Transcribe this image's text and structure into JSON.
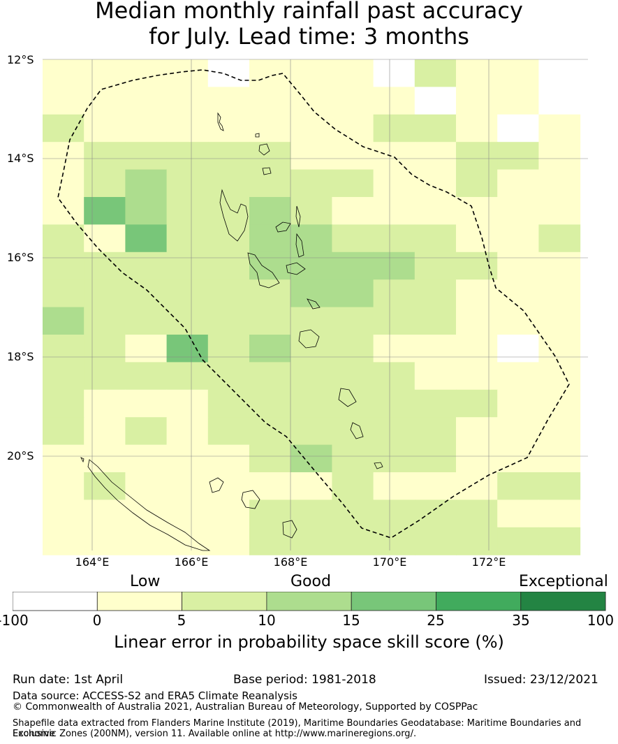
{
  "title": {
    "line1": "Median monthly rainfall past accuracy",
    "line2": "for July. Lead time: 3 months"
  },
  "axes": {
    "lat_labels": [
      "12°S",
      "14°S",
      "16°S",
      "18°S",
      "20°S"
    ],
    "lon_labels": [
      "164°E",
      "166°E",
      "168°E",
      "170°E",
      "172°E"
    ]
  },
  "legend": {
    "categories": [
      "Low",
      "Good",
      "Exceptional"
    ],
    "ticks": [
      "-100",
      "0",
      "5",
      "10",
      "15",
      "25",
      "35",
      "100"
    ],
    "colors": [
      "#ffffff",
      "#ffffcc",
      "#d9f0a3",
      "#addd8e",
      "#78c679",
      "#41ab5d",
      "#238443"
    ],
    "title": "Linear error in probability space skill score (%)"
  },
  "footer": {
    "run_date": "Run date: 1st April",
    "base_period": "Base period: 1981-2018",
    "issued": "Issued: 23/12/2021",
    "data_source": "Data source: ACCESS-S2 and ERA5 Climate Reanalysis",
    "copyright": "© Commonwealth of Australia 2021, Australian Bureau of Meteorology, Supported by COSPPac",
    "shapefile_line1": "Shapefile data extracted from Flanders Marine Institute (2019), Maritime Boundaries Geodatabase: Maritime Boundaries and Exclusive",
    "shapefile_line2": "Economic Zones (200NM), version 11. Available online at http://www.marineregions.org/."
  },
  "map_colors": {
    "boundary": "#000000",
    "gridline": "#888888"
  }
}
